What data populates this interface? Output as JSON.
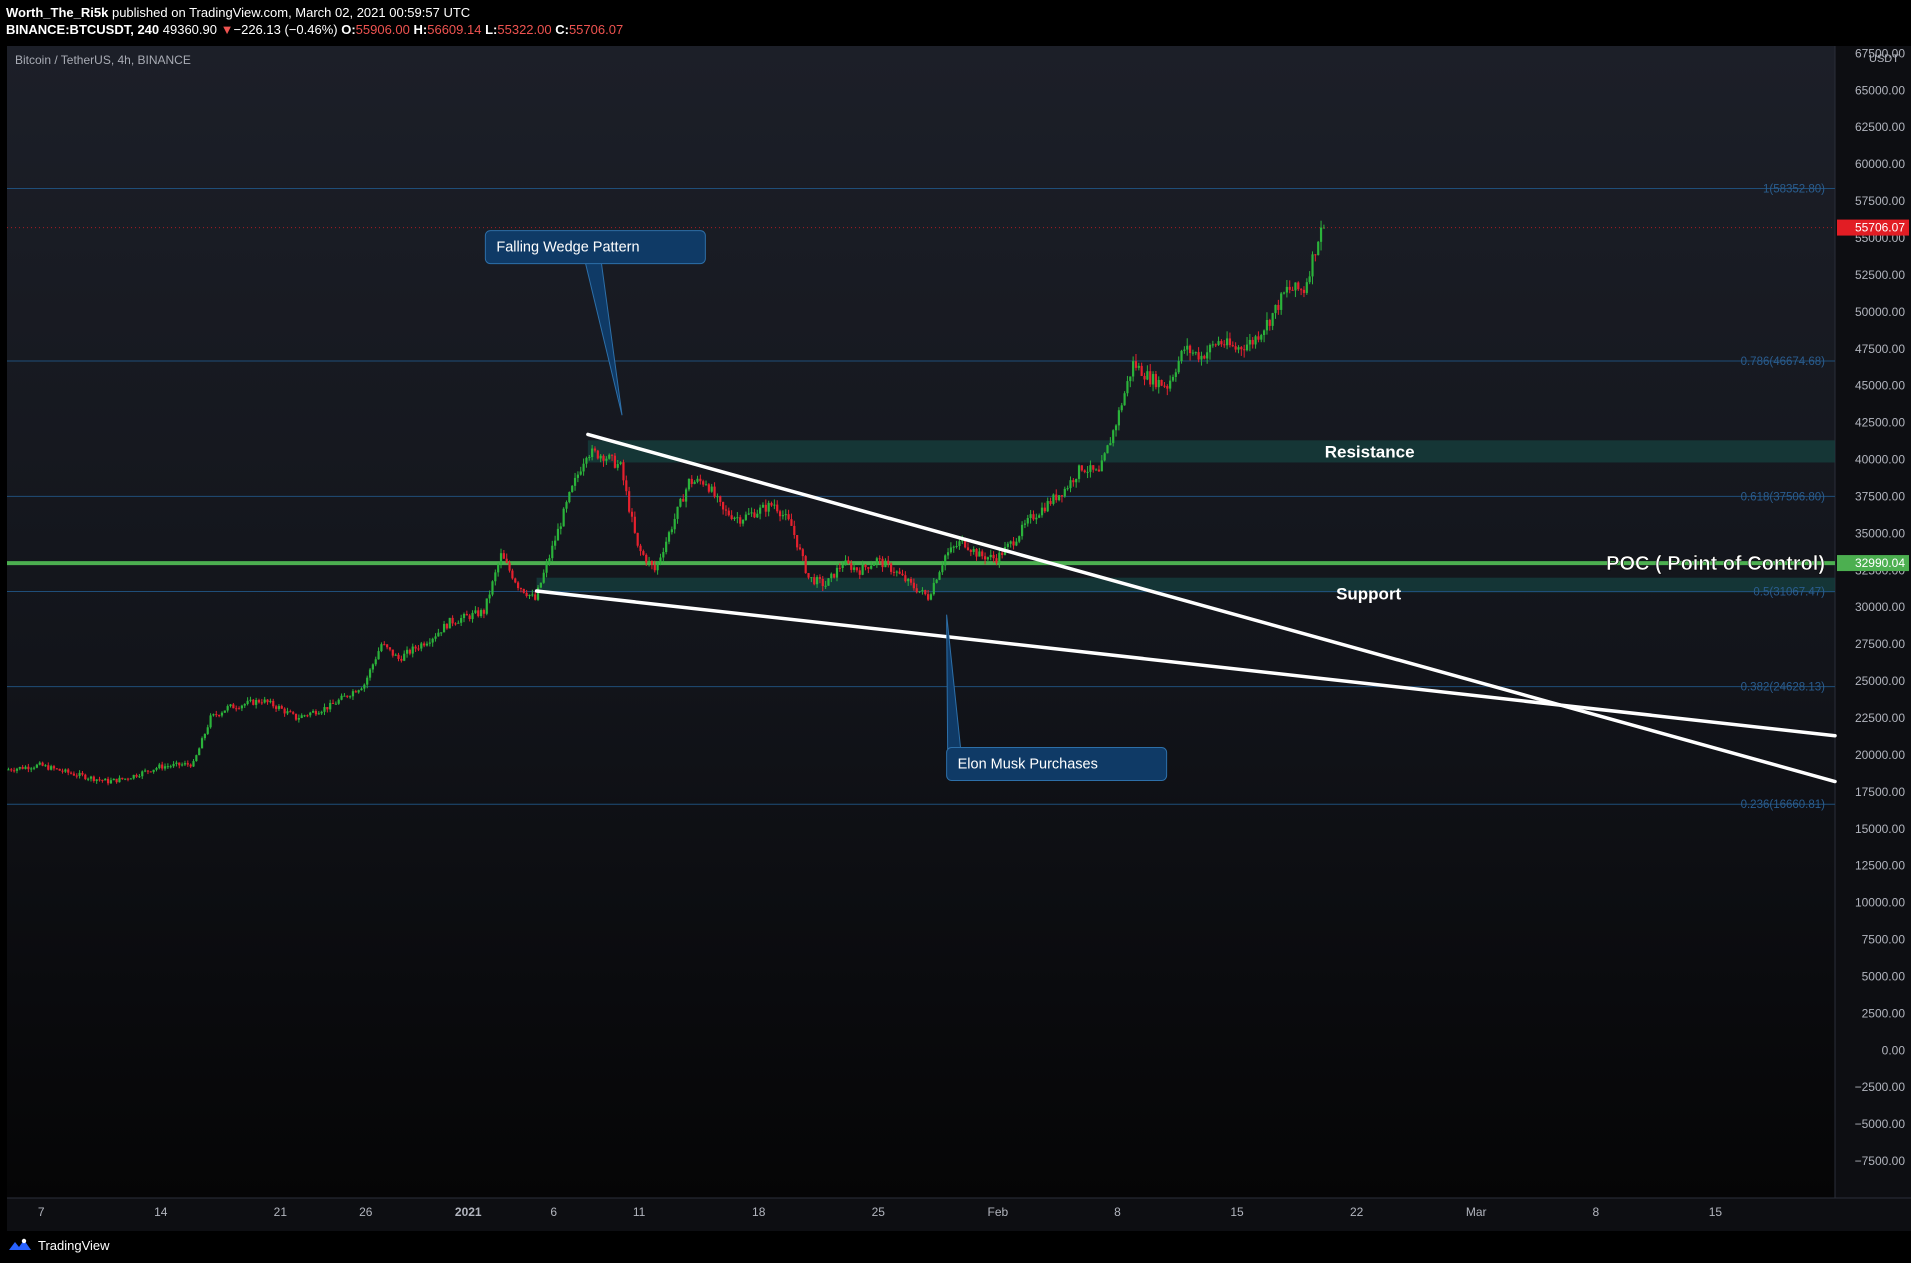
{
  "header": {
    "author": "Worth_The_Ri5k",
    "published_text": "published on TradingView.com, March 02, 2021 00:59:57 UTC",
    "symbol": "BINANCE:BTCUSDT, 240",
    "last": "49360.90",
    "change_arrow": "▼",
    "change": "−226.13 (−0.46%)",
    "o_label": "O:",
    "o_value": "55906.00",
    "h_label": "H:",
    "h_value": "56609.14",
    "l_label": "L:",
    "l_value": "55322.00",
    "c_label": "C:",
    "c_value": "55706.07"
  },
  "chart_title": "Bitcoin / TetherUS, 4h, BINANCE",
  "colors": {
    "up": "#26a69a",
    "candle_up": "#2bb33b",
    "candle_down": "#e5212e",
    "poc": "#4caf50",
    "fib": "#1f4e79",
    "zone": "#16403f",
    "callout": "#0f3a66",
    "callout_border": "#2d6fa8",
    "price_tag": "#e21d24",
    "poc_tag": "#4caf50"
  },
  "footer": {
    "brand": "TradingView"
  },
  "chart_data": {
    "type": "candlestick",
    "title": "Bitcoin / TetherUS, 4h, BINANCE",
    "currency": "USDT",
    "y_range": [
      -10000,
      68000
    ],
    "grid": false,
    "y_ticks": [
      "67500.00",
      "65000.00",
      "62500.00",
      "60000.00",
      "57500.00",
      "55000.00",
      "52500.00",
      "50000.00",
      "47500.00",
      "45000.00",
      "42500.00",
      "40000.00",
      "37500.00",
      "35000.00",
      "32500.00",
      "30000.00",
      "27500.00",
      "25000.00",
      "22500.00",
      "20000.00",
      "17500.00",
      "15000.00",
      "12500.00",
      "10000.00",
      "7500.00",
      "5000.00",
      "2500.00",
      "0.00",
      "−2500.00",
      "−5000.00",
      "−7500.00"
    ],
    "y_tick_values": [
      67500,
      65000,
      62500,
      60000,
      57500,
      55000,
      52500,
      50000,
      47500,
      45000,
      42500,
      40000,
      37500,
      35000,
      32500,
      30000,
      27500,
      25000,
      22500,
      20000,
      17500,
      15000,
      12500,
      10000,
      7500,
      5000,
      2500,
      0,
      -2500,
      -5000,
      -7500
    ],
    "x_range": [
      "2020-12-05",
      "2021-03-22"
    ],
    "x_ticks": [
      {
        "label": "7",
        "date": "2020-12-07"
      },
      {
        "label": "14",
        "date": "2020-12-14"
      },
      {
        "label": "21",
        "date": "2020-12-21"
      },
      {
        "label": "26",
        "date": "2020-12-26"
      },
      {
        "label": "2021",
        "date": "2021-01-01"
      },
      {
        "label": "6",
        "date": "2021-01-06"
      },
      {
        "label": "11",
        "date": "2021-01-11"
      },
      {
        "label": "18",
        "date": "2021-01-18"
      },
      {
        "label": "25",
        "date": "2021-01-25"
      },
      {
        "label": "Feb",
        "date": "2021-02-01"
      },
      {
        "label": "8",
        "date": "2021-02-08"
      },
      {
        "label": "15",
        "date": "2021-02-15"
      },
      {
        "label": "22",
        "date": "2021-02-22"
      },
      {
        "label": "Mar",
        "date": "2021-03-01"
      },
      {
        "label": "8",
        "date": "2021-03-08"
      },
      {
        "label": "15",
        "date": "2021-03-15"
      }
    ],
    "price_path": [
      [
        "2020-12-05",
        19000
      ],
      [
        "2020-12-07",
        19300
      ],
      [
        "2020-12-09",
        18700
      ],
      [
        "2020-12-11",
        18200
      ],
      [
        "2020-12-12",
        18400
      ],
      [
        "2020-12-14",
        19200
      ],
      [
        "2020-12-16",
        19400
      ],
      [
        "2020-12-17",
        22500
      ],
      [
        "2020-12-18",
        23200
      ],
      [
        "2020-12-20",
        23700
      ],
      [
        "2020-12-21",
        23200
      ],
      [
        "2020-12-22",
        22500
      ],
      [
        "2020-12-24",
        23300
      ],
      [
        "2020-12-26",
        24800
      ],
      [
        "2020-12-27",
        27500
      ],
      [
        "2020-12-28",
        26500
      ],
      [
        "2020-12-30",
        28000
      ],
      [
        "2020-12-31",
        29000
      ],
      [
        "2021-01-02",
        29700
      ],
      [
        "2021-01-03",
        33500
      ],
      [
        "2021-01-04",
        31500
      ],
      [
        "2021-01-05",
        30500
      ],
      [
        "2021-01-06",
        34000
      ],
      [
        "2021-01-07",
        37500
      ],
      [
        "2021-01-08",
        40500
      ],
      [
        "2021-01-09",
        40300
      ],
      [
        "2021-01-10",
        39500
      ],
      [
        "2021-01-11",
        34000
      ],
      [
        "2021-01-12",
        32500
      ],
      [
        "2021-01-13",
        35500
      ],
      [
        "2021-01-14",
        38500
      ],
      [
        "2021-01-15",
        38500
      ],
      [
        "2021-01-16",
        36500
      ],
      [
        "2021-01-17",
        36000
      ],
      [
        "2021-01-18",
        36500
      ],
      [
        "2021-01-19",
        37000
      ],
      [
        "2021-01-20",
        35500
      ],
      [
        "2021-01-21",
        32000
      ],
      [
        "2021-01-22",
        31500
      ],
      [
        "2021-01-23",
        33000
      ],
      [
        "2021-01-24",
        32500
      ],
      [
        "2021-01-25",
        33200
      ],
      [
        "2021-01-26",
        32500
      ],
      [
        "2021-01-27",
        31500
      ],
      [
        "2021-01-28",
        30700
      ],
      [
        "2021-01-29",
        33500
      ],
      [
        "2021-01-30",
        34500
      ],
      [
        "2021-01-31",
        33500
      ],
      [
        "2021-02-01",
        33300
      ],
      [
        "2021-02-02",
        34500
      ],
      [
        "2021-02-03",
        36000
      ],
      [
        "2021-02-04",
        37000
      ],
      [
        "2021-02-05",
        38000
      ],
      [
        "2021-02-06",
        39500
      ],
      [
        "2021-02-07",
        39000
      ],
      [
        "2021-02-08",
        42500
      ],
      [
        "2021-02-09",
        46500
      ],
      [
        "2021-02-10",
        45500
      ],
      [
        "2021-02-11",
        45000
      ],
      [
        "2021-02-12",
        47500
      ],
      [
        "2021-02-13",
        47000
      ],
      [
        "2021-02-14",
        48000
      ],
      [
        "2021-02-15",
        47500
      ],
      [
        "2021-02-16",
        48000
      ],
      [
        "2021-02-17",
        49500
      ],
      [
        "2021-02-18",
        51500
      ],
      [
        "2021-02-19",
        51500
      ],
      [
        "2021-02-20",
        55700
      ]
    ],
    "horizontal_levels": [
      {
        "label": "1(58352.80)",
        "value": 58352.8,
        "kind": "fib"
      },
      {
        "label": "0.786(46674.68)",
        "value": 46674.68,
        "kind": "fib"
      },
      {
        "label": "0.618(37506.80)",
        "value": 37506.8,
        "kind": "fib"
      },
      {
        "label": "0.5(31067.47)",
        "value": 31067.47,
        "kind": "fib"
      },
      {
        "label": "0.382(24628.13)",
        "value": 24628.13,
        "kind": "fib"
      },
      {
        "label": "0.236(16660.81)",
        "value": 16660.81,
        "kind": "fib"
      }
    ],
    "poc": {
      "value": 32990.04,
      "label": "POC ( Point of Control)",
      "tag": "32990.04"
    },
    "last_price": {
      "value": 55706.07,
      "tag": "55706.07"
    },
    "zones": [
      {
        "label": "Resistance",
        "from_date": "2021-01-08",
        "low": 39800,
        "high": 41300
      },
      {
        "label": "Support",
        "from_date": "2021-01-05",
        "low": 31000,
        "high": 32000
      }
    ],
    "trendlines": [
      {
        "name": "wedge-upper",
        "from": [
          "2021-01-08",
          41700
        ],
        "to": [
          "2021-03-22",
          18200
        ]
      },
      {
        "name": "wedge-lower",
        "from": [
          "2021-01-05",
          31100
        ],
        "to": [
          "2021-03-22",
          21300
        ]
      }
    ],
    "callouts": [
      {
        "text": "Falling Wedge Pattern",
        "anchor": [
          "2021-01-10",
          43000
        ],
        "box_date": "2021-01-02",
        "box_price": 55500
      },
      {
        "text": "Elon Musk Purchases",
        "anchor": [
          "2021-01-29",
          29500
        ],
        "box_date": "2021-01-29",
        "box_price": 20500
      }
    ]
  }
}
